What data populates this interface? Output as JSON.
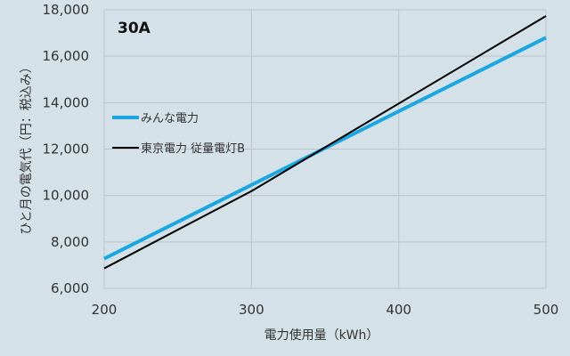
{
  "chart_data": {
    "type": "line",
    "panel_label": "30A",
    "xlabel": "電力使用量（kWh）",
    "ylabel": "ひと月の電気代（円：税込み）",
    "xlim": [
      200,
      500
    ],
    "ylim": [
      6000,
      18000
    ],
    "x_ticks": [
      200,
      300,
      400,
      500
    ],
    "y_ticks": [
      6000,
      8000,
      10000,
      12000,
      14000,
      16000,
      18000
    ],
    "x_tick_labels": [
      "200",
      "300",
      "400",
      "500"
    ],
    "y_tick_labels": [
      "6,000",
      "8,000",
      "10,000",
      "12,000",
      "14,000",
      "16,000",
      "18,000"
    ],
    "grid": true,
    "legend_position": "left",
    "series": [
      {
        "name": "みんな電力",
        "color": "#1aa7e1",
        "x": [
          200,
          500
        ],
        "y": [
          7280,
          16800
        ]
      },
      {
        "name": "東京電力 従量電灯B",
        "color": "#000000",
        "x": [
          200,
          300,
          500
        ],
        "y": [
          6860,
          10190,
          17730
        ]
      }
    ]
  }
}
